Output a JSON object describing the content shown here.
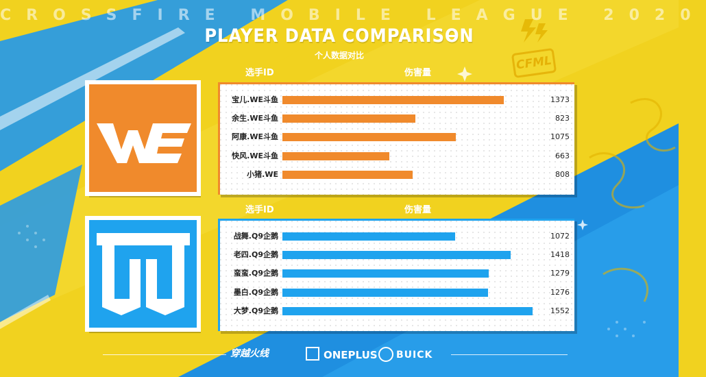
{
  "header": {
    "league_title": "CROSSFIRE MOBILE LEAGUE 2020",
    "title": "PLAYER DATA COMPARISON",
    "subtitle": "个人数据对比"
  },
  "badge": {
    "text": "CFML"
  },
  "colors": {
    "background": "#f1d21f",
    "stripe_blue": "#1f8fe0",
    "team_orange": "#f08a2c",
    "team_blue": "#1fa3ee"
  },
  "chart_data": [
    {
      "type": "bar",
      "team": "WE",
      "col_player": "选手ID",
      "col_value": "伤害量",
      "categories": [
        "宝儿.WE斗鱼",
        "余生.WE斗鱼",
        "阿康.WE斗鱼",
        "快风.WE斗鱼",
        "小猪.WE"
      ],
      "values": [
        1373,
        823,
        1075,
        663,
        808
      ],
      "xlim": [
        0,
        1650
      ],
      "color": "#f08a2c"
    },
    {
      "type": "bar",
      "team": "Q9",
      "col_player": "选手ID",
      "col_value": "伤害量",
      "categories": [
        "战舞.Q9企鹅",
        "老四.Q9企鹅",
        "蛮蛮.Q9企鹅",
        "墨白.Q9企鹅",
        "大梦.Q9企鹅"
      ],
      "values": [
        1072,
        1418,
        1279,
        1276,
        1552
      ],
      "xlim": [
        0,
        1650
      ],
      "color": "#1fa3ee"
    }
  ],
  "sponsors": {
    "cf": "穿越火线",
    "oneplus": "ONEPLUS",
    "buick": "BUICK"
  }
}
